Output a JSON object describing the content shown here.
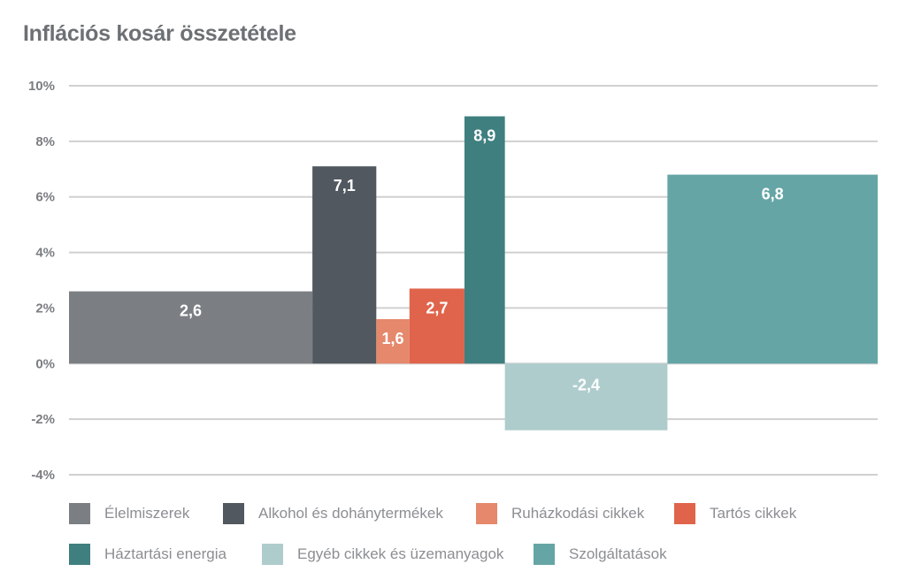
{
  "chart_data": {
    "type": "bar",
    "subtype": "variable-width",
    "title": "Inflációs kosár összetétele",
    "xlabel": "",
    "ylabel": "",
    "ylim": [
      -4,
      10
    ],
    "yticks": [
      10,
      8,
      6,
      4,
      2,
      0,
      -2,
      -4
    ],
    "ytick_labels": [
      "10%",
      "8%",
      "6%",
      "4%",
      "2%",
      "0%",
      "-2%",
      "-4%"
    ],
    "grid": true,
    "legend_position": "bottom",
    "categories": [
      "Élelmiszerek",
      "Alkohol és dohánytermékek",
      "Ruházkodási cikkek",
      "Tartós cikkek",
      "Háztartási energia",
      "Egyéb cikkek és üzemanyagok",
      "Szolgáltatások"
    ],
    "values": [
      2.6,
      7.1,
      1.6,
      2.7,
      8.9,
      -2.4,
      6.8
    ],
    "value_labels": [
      "2,6",
      "7,1",
      "1,6",
      "2,7",
      "8,9",
      "-2,4",
      "6,8"
    ],
    "weights": [
      30.1,
      7.9,
      4.1,
      6.8,
      5.0,
      20.1,
      26.0
    ],
    "colors": [
      "#7b7e83",
      "#51585f",
      "#e5886c",
      "#df644b",
      "#3f7f7f",
      "#afcccd",
      "#65a5a6"
    ]
  }
}
